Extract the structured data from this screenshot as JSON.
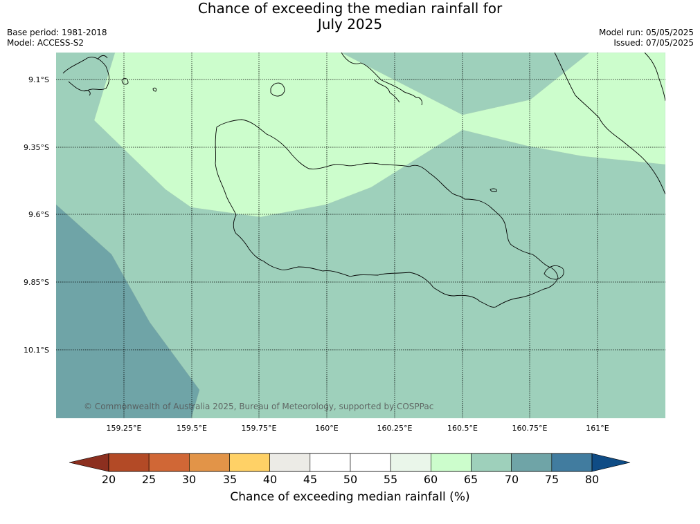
{
  "title": {
    "line1": "Chance of exceeding the median rainfall for",
    "line2": "July 2025"
  },
  "meta_left": {
    "base_period": "Base period: 1981-2018",
    "model": "Model: ACCESS-S2"
  },
  "meta_right": {
    "model_run": "Model run: 05/05/2025",
    "issued": "Issued: 07/05/2025"
  },
  "map": {
    "lat_labels": [
      "9.1°S",
      "9.35°S",
      "9.6°S",
      "9.85°S",
      "10.1°S"
    ],
    "lon_labels": [
      "159.25°E",
      "159.5°E",
      "159.75°E",
      "160°E",
      "160.25°E",
      "160.5°E",
      "160.75°E",
      "161°E"
    ],
    "copyright": "© Commonwealth of Australia 2025, Bureau of Meteorology, supported by COSPPac",
    "zone_colors": {
      "60-65": "#ccfdcc",
      "65-70": "#9ed0bb",
      "70-75": "#6fa4a7"
    }
  },
  "colorbar": {
    "title": "Chance of exceeding median rainfall (%)",
    "ticks": [
      "20",
      "25",
      "30",
      "35",
      "40",
      "45",
      "50",
      "55",
      "60",
      "65",
      "70",
      "75",
      "80"
    ],
    "under_color": "#8c2f1f",
    "over_color": "#0f4c85",
    "colors": [
      "#b34a26",
      "#d06736",
      "#e29448",
      "#ffd166",
      "#ecebe6",
      "#ffffff",
      "#ffffff",
      "#eaf6ea",
      "#ccfdcc",
      "#9ed0bb",
      "#6fa4a7",
      "#417c9f"
    ]
  }
}
